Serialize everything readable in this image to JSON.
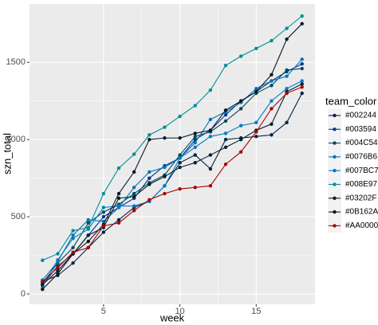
{
  "chart_data": {
    "type": "line",
    "x_label": "week",
    "y_label": "szn_total",
    "legend_title": "team_color",
    "x": [
      1,
      2,
      3,
      4,
      5,
      6,
      7,
      8,
      9,
      10,
      11,
      12,
      13,
      14,
      15,
      16,
      17,
      18
    ],
    "xlim": [
      0.15,
      18.85
    ],
    "xticks": [
      5,
      10,
      15
    ],
    "ylim": [
      -67,
      1878
    ],
    "yticks": [
      0,
      500,
      1000,
      1500
    ],
    "grid": true,
    "legend": "right",
    "series": [
      {
        "name": "#002244",
        "color": "#002244",
        "values": [
          80,
          120,
          200,
          300,
          400,
          480,
          560,
          600,
          700,
          850,
          900,
          810,
          1000,
          1010,
          1020,
          1030,
          1110,
          1300
        ]
      },
      {
        "name": "#003594",
        "color": "#003594",
        "values": [
          60,
          180,
          260,
          380,
          500,
          560,
          620,
          750,
          830,
          880,
          1000,
          1060,
          1160,
          1250,
          1310,
          1380,
          1440,
          1490
        ]
      },
      {
        "name": "#004C54",
        "color": "#004C54",
        "values": [
          70,
          200,
          300,
          460,
          530,
          580,
          650,
          720,
          770,
          900,
          1020,
          1050,
          1120,
          1200,
          1300,
          1350,
          1450,
          1460
        ]
      },
      {
        "name": "#0076B6",
        "color": "#0076B6",
        "values": [
          90,
          210,
          380,
          480,
          470,
          560,
          690,
          790,
          820,
          880,
          980,
          1130,
          1180,
          1240,
          1330,
          1380,
          1410,
          1520
        ]
      },
      {
        "name": "#007BC7",
        "color": "#007BC7",
        "values": [
          50,
          220,
          360,
          420,
          560,
          570,
          570,
          600,
          700,
          880,
          950,
          1020,
          1040,
          1090,
          1110,
          1250,
          1330,
          1380
        ]
      },
      {
        "name": "#008E97",
        "color": "#008E97",
        "values": [
          218,
          260,
          410,
          430,
          650,
          815,
          905,
          1030,
          1080,
          1150,
          1220,
          1320,
          1480,
          1540,
          1590,
          1640,
          1720,
          1800
        ]
      },
      {
        "name": "#03202F",
        "color": "#03202F",
        "values": [
          60,
          150,
          260,
          380,
          430,
          620,
          630,
          710,
          760,
          820,
          850,
          900,
          950,
          1000,
          1060,
          1100,
          1310,
          1360
        ]
      },
      {
        "name": "#0B162A",
        "color": "#0B162A",
        "values": [
          30,
          130,
          260,
          340,
          450,
          650,
          790,
          1000,
          1010,
          1010,
          1040,
          1060,
          1190,
          1250,
          1310,
          1420,
          1650,
          1750
        ]
      },
      {
        "name": "#AA0000",
        "color": "#AA0000",
        "values": [
          80,
          170,
          270,
          300,
          440,
          460,
          540,
          610,
          650,
          680,
          690,
          700,
          840,
          920,
          1050,
          1200,
          1300,
          1340
        ]
      }
    ]
  }
}
